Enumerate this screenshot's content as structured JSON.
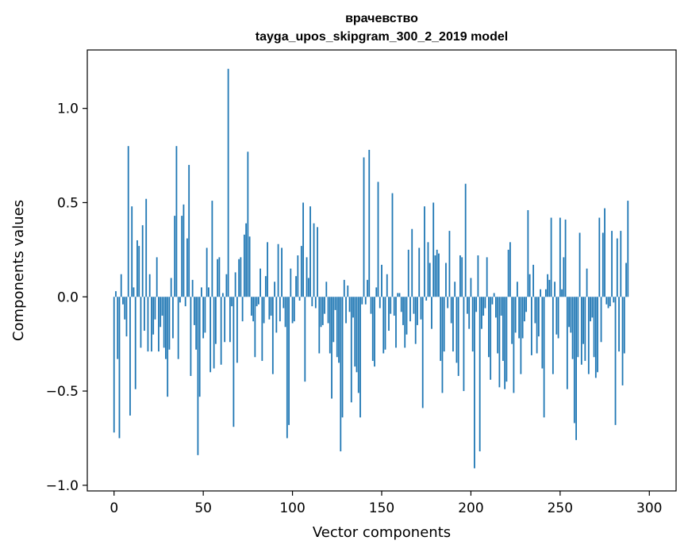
{
  "chart_data": {
    "type": "bar",
    "title": "врачевство",
    "subtitle": "tayga_upos_skipgram_300_2_2019 model",
    "xlabel": "Vector components",
    "ylabel": "Components values",
    "xlim": [
      -15,
      315
    ],
    "ylim": [
      -1.03,
      1.31
    ],
    "xticks": [
      0,
      50,
      100,
      150,
      200,
      250,
      300
    ],
    "yticks": [
      -1.0,
      -0.5,
      0.0,
      0.5,
      1.0
    ],
    "ytick_labels": [
      "−1.0",
      "−0.5",
      "0.0",
      "0.5",
      "1.0"
    ],
    "bar_color": "#1f77b4",
    "grid": false,
    "values": [
      -0.72,
      0.03,
      -0.33,
      -0.75,
      0.12,
      -0.04,
      -0.12,
      -0.21,
      0.8,
      -0.63,
      0.48,
      0.05,
      -0.49,
      0.3,
      0.27,
      -0.27,
      0.38,
      -0.18,
      0.52,
      -0.29,
      0.12,
      -0.29,
      -0.2,
      -0.12,
      0.21,
      -0.29,
      -0.16,
      -0.1,
      -0.27,
      -0.33,
      -0.53,
      -0.28,
      0.1,
      -0.22,
      0.43,
      0.8,
      -0.33,
      -0.03,
      0.43,
      0.49,
      -0.05,
      0.31,
      0.7,
      -0.42,
      0.09,
      -0.15,
      -0.28,
      -0.84,
      -0.53,
      0.05,
      -0.22,
      -0.19,
      0.26,
      0.05,
      -0.4,
      0.51,
      -0.38,
      -0.25,
      0.2,
      0.21,
      -0.36,
      0.02,
      -0.24,
      0.12,
      1.21,
      -0.24,
      -0.05,
      -0.69,
      0.13,
      -0.35,
      0.2,
      0.21,
      -0.13,
      0.33,
      0.39,
      0.77,
      0.32,
      -0.1,
      -0.13,
      -0.32,
      -0.05,
      -0.04,
      0.15,
      -0.34,
      -0.14,
      0.11,
      0.29,
      -0.12,
      -0.1,
      -0.41,
      0.08,
      -0.19,
      0.28,
      -0.13,
      0.26,
      -0.06,
      -0.16,
      -0.75,
      -0.68,
      0.15,
      -0.14,
      -0.13,
      0.11,
      0.22,
      -0.02,
      0.27,
      0.5,
      -0.45,
      0.21,
      0.1,
      0.48,
      -0.05,
      0.39,
      -0.06,
      0.37,
      -0.3,
      -0.16,
      -0.15,
      -0.09,
      0.08,
      -0.14,
      -0.3,
      -0.54,
      -0.24,
      -0.07,
      -0.32,
      -0.35,
      -0.82,
      -0.64,
      0.09,
      -0.14,
      0.06,
      -0.08,
      -0.56,
      -0.11,
      -0.37,
      -0.4,
      -0.51,
      -0.64,
      -0.04,
      0.74,
      -0.04,
      0.09,
      0.78,
      -0.09,
      -0.34,
      -0.37,
      0.05,
      0.61,
      -0.06,
      0.17,
      -0.3,
      -0.28,
      0.12,
      -0.18,
      -0.09,
      0.55,
      -0.1,
      -0.27,
      0.02,
      0.02,
      -0.08,
      -0.15,
      -0.27,
      -0.2,
      0.25,
      -0.13,
      0.36,
      -0.09,
      -0.25,
      -0.15,
      0.26,
      -0.12,
      -0.59,
      0.48,
      -0.02,
      0.29,
      0.18,
      -0.17,
      0.5,
      0.22,
      0.25,
      0.23,
      -0.34,
      -0.51,
      -0.29,
      0.18,
      -0.06,
      0.35,
      -0.14,
      -0.29,
      0.08,
      -0.35,
      -0.42,
      0.22,
      0.21,
      -0.5,
      0.6,
      -0.09,
      -0.17,
      0.1,
      -0.29,
      -0.91,
      -0.08,
      0.22,
      -0.82,
      -0.17,
      -0.1,
      -0.06,
      0.21,
      -0.32,
      -0.44,
      -0.04,
      0.02,
      -0.11,
      -0.3,
      -0.48,
      -0.1,
      -0.34,
      -0.49,
      -0.45,
      0.25,
      0.29,
      -0.25,
      -0.51,
      -0.19,
      0.08,
      -0.22,
      -0.41,
      -0.22,
      -0.13,
      -0.08,
      0.46,
      0.12,
      -0.31,
      0.17,
      -0.14,
      -0.3,
      -0.21,
      0.04,
      -0.38,
      -0.64,
      0.04,
      0.12,
      0.09,
      0.42,
      -0.41,
      0.08,
      -0.2,
      -0.22,
      0.42,
      0.04,
      0.21,
      0.41,
      -0.49,
      -0.16,
      -0.19,
      -0.33,
      -0.67,
      -0.76,
      -0.32,
      0.34,
      -0.36,
      -0.25,
      -0.34,
      0.15,
      -0.41,
      -0.13,
      -0.11,
      -0.32,
      -0.43,
      -0.4,
      0.42,
      -0.24,
      0.34,
      0.47,
      -0.04,
      -0.06,
      -0.05,
      0.35,
      -0.03,
      -0.68,
      0.31,
      -0.29,
      0.35,
      -0.47,
      -0.3,
      0.18,
      0.51
    ]
  }
}
